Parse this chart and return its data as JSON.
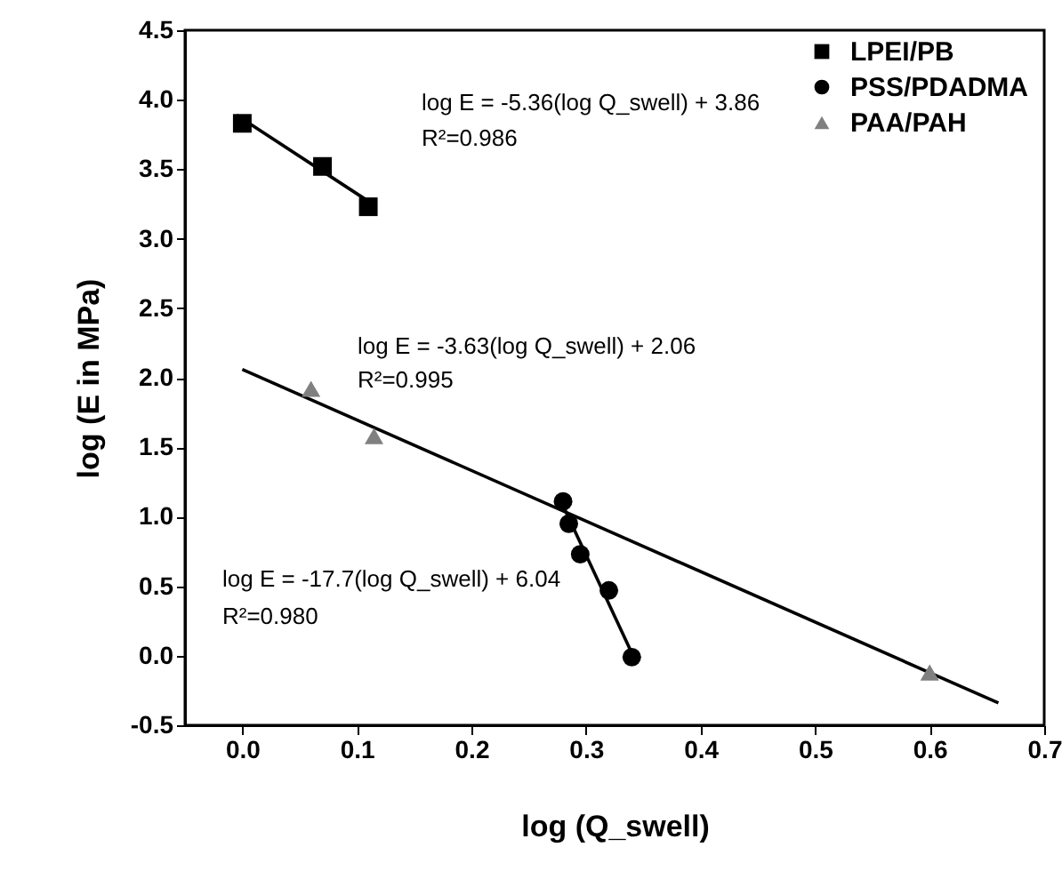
{
  "chart_data": {
    "type": "scatter",
    "xlabel": "log (Q_swell)",
    "ylabel": "log (E in MPa)",
    "xlim": [
      -0.05,
      0.7
    ],
    "xticks": [
      {
        "value": 0,
        "label": "0.0"
      },
      0.1,
      0.2,
      0.3,
      0.4,
      0.5,
      0.6,
      0.7
    ],
    "ylim": [
      -0.5,
      4.5
    ],
    "yticks": [
      -0.5,
      {
        "value": 0,
        "label": "0.0"
      },
      0.5,
      {
        "value": 1,
        "label": "1.0"
      },
      1.5,
      {
        "value": 2,
        "label": "2.0"
      },
      2.5,
      {
        "value": 3,
        "label": "3.0"
      },
      3.5,
      {
        "value": 4,
        "label": "4.0"
      },
      4.5
    ],
    "grid": false,
    "legend": "top right",
    "series": [
      {
        "name": "LPEI/PB",
        "marker": "square",
        "color": "#000000",
        "x": [
          0.0,
          0.07,
          0.11
        ],
        "values": [
          3.83,
          3.52,
          3.23
        ]
      },
      {
        "name": "PSS/PDADMA",
        "marker": "circle",
        "color": "#000000",
        "x": [
          0.28,
          0.285,
          0.295,
          0.32,
          0.34
        ],
        "values": [
          1.11,
          0.95,
          0.73,
          0.47,
          -0.01
        ]
      },
      {
        "name": "PAA/PAH",
        "marker": "triangle",
        "color": "#808080",
        "x": [
          0.06,
          0.115,
          0.6
        ],
        "values": [
          1.92,
          1.58,
          -0.12
        ]
      },
      {
        "type": "line",
        "color": "#000000",
        "x": [
          -0.005,
          0.11
        ],
        "values": [
          3.89,
          3.27
        ]
      },
      {
        "type": "line",
        "color": "#000000",
        "x": [
          0.0,
          0.66
        ],
        "values": [
          2.06,
          -0.34
        ]
      },
      {
        "type": "line",
        "color": "#000000",
        "x": [
          0.28,
          0.34
        ],
        "values": [
          1.08,
          0.02
        ]
      }
    ],
    "annotations": [
      "log E = -5.36(log Q_swell) + 3.86",
      "R²=0.986",
      "log E = -3.63(log Q_swell) + 2.06",
      "R²=0.995",
      "log E = -17.7(log Q_swell) + 6.04",
      "R²=0.980"
    ]
  }
}
